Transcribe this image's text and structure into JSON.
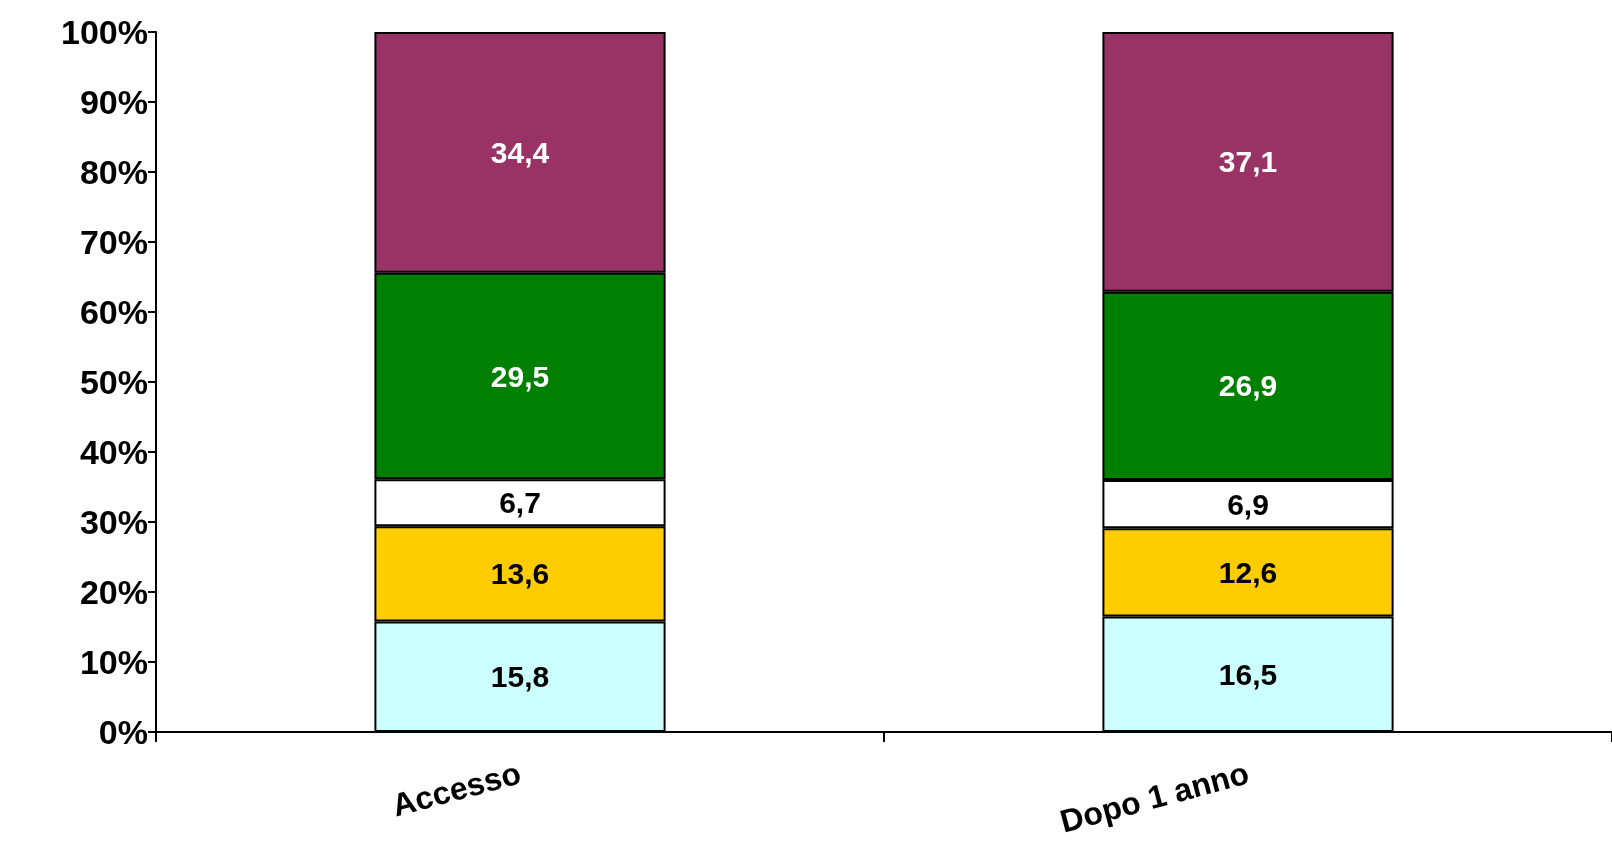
{
  "chart_data": {
    "type": "bar",
    "stacked": true,
    "categories": [
      "Accesso",
      "Dopo 1 anno"
    ],
    "series": [
      {
        "color": "#ccffff",
        "values": [
          15.8,
          16.5
        ],
        "value_labels": [
          "15,8",
          "16,5"
        ]
      },
      {
        "color": "#ffcc00",
        "values": [
          13.6,
          12.6
        ],
        "value_labels": [
          "13,6",
          "12,6"
        ]
      },
      {
        "color": "#ffffff",
        "values": [
          6.7,
          6.9
        ],
        "value_labels": [
          "6,7",
          "6,9"
        ]
      },
      {
        "color": "#008000",
        "values": [
          29.5,
          26.9
        ],
        "value_labels": [
          "29,5",
          "26,9"
        ]
      },
      {
        "color": "#993366",
        "values": [
          34.4,
          37.1
        ],
        "value_labels": [
          "34,4",
          "37,1"
        ]
      }
    ],
    "ylim": [
      0,
      100
    ],
    "yticks": [
      {
        "value": 0,
        "label": "0%"
      },
      {
        "value": 10,
        "label": "10%"
      },
      {
        "value": 20,
        "label": "20%"
      },
      {
        "value": 30,
        "label": "30%"
      },
      {
        "value": 40,
        "label": "40%"
      },
      {
        "value": 50,
        "label": "50%"
      },
      {
        "value": 60,
        "label": "60%"
      },
      {
        "value": 70,
        "label": "70%"
      },
      {
        "value": 80,
        "label": "80%"
      },
      {
        "value": 90,
        "label": "90%"
      },
      {
        "value": 100,
        "label": "100%"
      }
    ],
    "grid": false
  }
}
